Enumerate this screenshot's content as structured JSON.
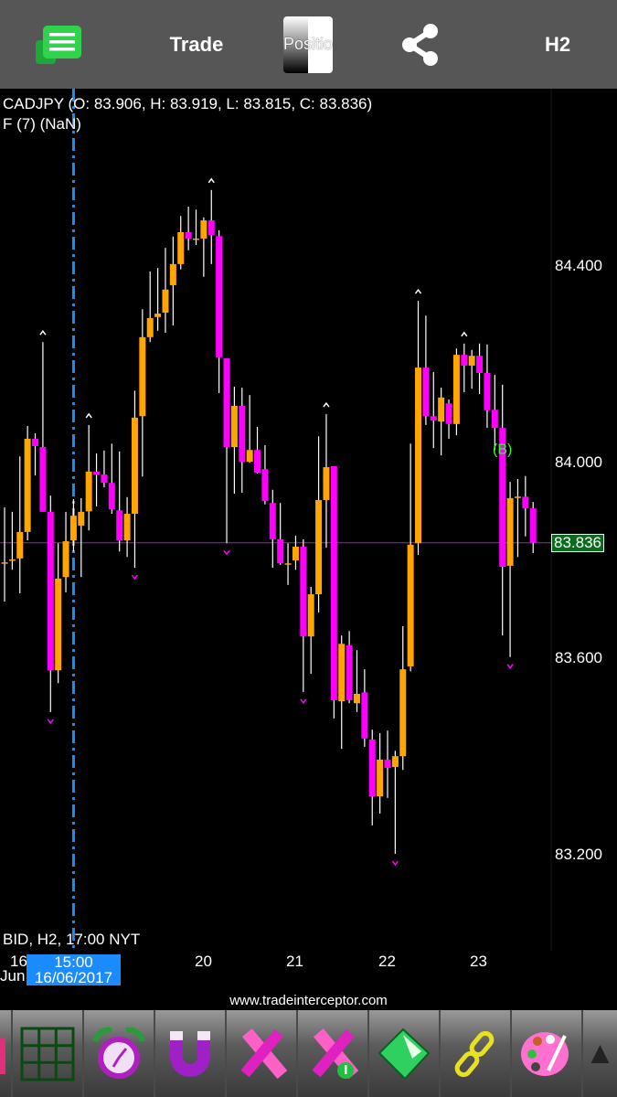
{
  "topbar": {
    "menu_icon": "green-menu-list-icon",
    "trade_label": "Trade",
    "positions_label": "Positio",
    "share_icon": "share-icon",
    "timeframe_label": "H2"
  },
  "chart_header": {
    "ohlc_line": "CADJPY (O: 83.906, H: 83.919, L: 83.815, C: 83.836)",
    "indicator_line": "F (7) (NaN)",
    "bid_line": "BID, H2, 17:00 NYT"
  },
  "current_price_label": "83.836",
  "cursor_label": {
    "time": "15:00",
    "date": "16/06/2017"
  },
  "x_labels": {
    "first_day": "16",
    "first_month": "Jun",
    "d20": "20",
    "d21": "21",
    "d22": "22",
    "d23": "23"
  },
  "y_labels": [
    "84.400",
    "84.000",
    "83.600",
    "83.200"
  ],
  "website": "www.tradeinterceptor.com",
  "colors": {
    "bull": "#ffa500",
    "bear": "#ff00ff",
    "wick": "#ffffff",
    "cursor_line": "#1a8cff",
    "price_line": "#a020c0",
    "price_tag": "#0a6b1c",
    "fractal_up": "#ffffff",
    "fractal_down": "#ff00ff"
  },
  "toolbar": {
    "icons": [
      "grid-icon",
      "alarm-clock-icon",
      "magnet-icon",
      "drawing-tools-icon",
      "drawing-tools-info-icon",
      "folder-icon",
      "link-icon",
      "palette-icon"
    ]
  },
  "chart_data": {
    "type": "candlestick",
    "symbol": "CADJPY",
    "timeframe": "H2",
    "ylim": [
      83.05,
      84.62
    ],
    "y_ticks": [
      84.4,
      84.0,
      83.6,
      83.2
    ],
    "x_ticks": [
      "16 Jun",
      "20",
      "21",
      "22",
      "23"
    ],
    "current_price": 83.836,
    "candles": [
      [
        83.796,
        83.908,
        83.716,
        83.796
      ],
      [
        83.802,
        83.899,
        83.781,
        83.802
      ],
      [
        83.804,
        84.012,
        83.733,
        83.858
      ],
      [
        83.858,
        84.074,
        83.841,
        84.048
      ],
      [
        84.048,
        84.059,
        83.973,
        84.033
      ],
      [
        84.031,
        84.245,
        83.899,
        83.899
      ],
      [
        83.899,
        83.932,
        83.491,
        83.576
      ],
      [
        83.576,
        83.835,
        83.55,
        83.763
      ],
      [
        83.766,
        83.899,
        83.735,
        83.839
      ],
      [
        83.841,
        83.925,
        83.818,
        83.891
      ],
      [
        83.871,
        83.927,
        83.766,
        83.899
      ],
      [
        83.9,
        84.076,
        83.861,
        83.981
      ],
      [
        83.981,
        84.018,
        83.91,
        83.975
      ],
      [
        83.975,
        84.024,
        83.949,
        83.958
      ],
      [
        83.958,
        84.038,
        83.895,
        83.904
      ],
      [
        83.902,
        84.022,
        83.818,
        83.841
      ],
      [
        83.841,
        83.929,
        83.807,
        83.895
      ],
      [
        83.895,
        84.146,
        83.785,
        84.091
      ],
      [
        84.094,
        84.312,
        83.971,
        84.255
      ],
      [
        84.255,
        84.389,
        84.245,
        84.294
      ],
      [
        84.296,
        84.396,
        84.268,
        84.303
      ],
      [
        84.305,
        84.437,
        84.264,
        84.352
      ],
      [
        84.361,
        84.46,
        84.279,
        84.404
      ],
      [
        84.404,
        84.502,
        84.393,
        84.469
      ],
      [
        84.469,
        84.521,
        84.432,
        84.456
      ],
      [
        84.456,
        84.515,
        84.443,
        84.456
      ],
      [
        84.456,
        84.499,
        84.378,
        84.493
      ],
      [
        84.493,
        84.555,
        84.404,
        84.463
      ],
      [
        84.461,
        84.473,
        84.141,
        84.214
      ],
      [
        84.212,
        84.212,
        83.835,
        84.031
      ],
      [
        84.031,
        84.154,
        83.936,
        84.115
      ],
      [
        84.115,
        84.152,
        83.938,
        84.001
      ],
      [
        84.001,
        84.137,
        83.999,
        84.025
      ],
      [
        84.025,
        84.072,
        83.977,
        83.979
      ],
      [
        83.986,
        84.035,
        83.914,
        83.921
      ],
      [
        83.917,
        83.944,
        83.785,
        83.843
      ],
      [
        83.843,
        83.917,
        83.791,
        83.794
      ],
      [
        83.794,
        83.835,
        83.75,
        83.794
      ],
      [
        83.8,
        83.85,
        83.781,
        83.828
      ],
      [
        83.828,
        83.843,
        83.532,
        83.645
      ],
      [
        83.645,
        83.746,
        83.569,
        83.731
      ],
      [
        83.731,
        84.053,
        83.694,
        83.923
      ],
      [
        83.923,
        84.098,
        83.826,
        83.99
      ],
      [
        83.992,
        83.992,
        83.478,
        83.515
      ],
      [
        83.513,
        83.647,
        83.416,
        83.63
      ],
      [
        83.627,
        83.656,
        83.509,
        83.515
      ],
      [
        83.509,
        83.617,
        83.491,
        83.528
      ],
      [
        83.531,
        83.578,
        83.42,
        83.437
      ],
      [
        83.435,
        83.455,
        83.26,
        83.319
      ],
      [
        83.319,
        83.448,
        83.284,
        83.394
      ],
      [
        83.394,
        83.453,
        83.316,
        83.377
      ],
      [
        83.379,
        83.412,
        83.202,
        83.401
      ],
      [
        83.401,
        83.666,
        83.373,
        83.578
      ],
      [
        83.584,
        84.038,
        83.574,
        83.832
      ],
      [
        83.835,
        84.329,
        83.811,
        84.193
      ],
      [
        84.193,
        84.299,
        84.076,
        84.094
      ],
      [
        84.094,
        84.184,
        84.029,
        84.085
      ],
      [
        84.083,
        84.152,
        84.014,
        84.132
      ],
      [
        84.12,
        84.128,
        84.048,
        84.078
      ],
      [
        84.078,
        84.232,
        84.055,
        84.219
      ],
      [
        84.219,
        84.242,
        84.143,
        84.197
      ],
      [
        84.197,
        84.229,
        84.15,
        84.217
      ],
      [
        84.217,
        84.242,
        84.139,
        84.182
      ],
      [
        84.182,
        84.24,
        84.07,
        84.106
      ],
      [
        84.107,
        84.178,
        84.025,
        84.07
      ],
      [
        84.07,
        84.158,
        83.647,
        83.787
      ],
      [
        83.789,
        83.96,
        83.603,
        83.927
      ],
      [
        83.93,
        83.966,
        83.807,
        83.93
      ],
      [
        83.93,
        83.972,
        83.849,
        83.906
      ],
      [
        83.906,
        83.919,
        83.815,
        83.836
      ]
    ],
    "candle_format": [
      "open",
      "high",
      "low",
      "close"
    ],
    "fractal_up_indices": [
      5,
      11,
      27,
      42,
      54,
      60
    ],
    "fractal_down_indices": [
      6,
      17,
      29,
      39,
      51,
      66
    ],
    "buy_marker_index": 65,
    "cursor_index": 9
  }
}
